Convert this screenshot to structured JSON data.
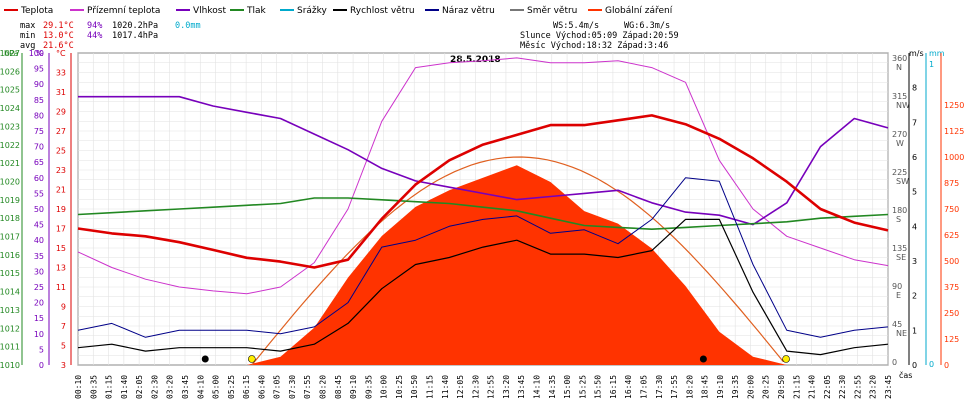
{
  "legend": [
    {
      "label": "Teplota",
      "color": "#dd0000"
    },
    {
      "label": "Přízemní teplota",
      "color": "#cc33cc"
    },
    {
      "label": "Vlhkost",
      "color": "#7700bb"
    },
    {
      "label": "Tlak",
      "color": "#228822"
    },
    {
      "label": "Srážky",
      "color": "#00aacc"
    },
    {
      "label": "Rychlost větru",
      "color": "#000000"
    },
    {
      "label": "Náraz větru",
      "color": "#000088"
    },
    {
      "label": "Směr větru",
      "color": "#777777"
    },
    {
      "label": "Globální záření",
      "color": "#ff3300"
    }
  ],
  "stats": {
    "max_label": "max",
    "max_temp": "29.1°C",
    "max_hum": "94%",
    "max_press": "1020.2hPa",
    "max_rain": "0.0mm",
    "min_label": "min",
    "min_temp": "13.0°C",
    "min_hum": "44%",
    "min_press": "1017.4hPa",
    "avg_label": "avg",
    "avg_temp": "21.6°C"
  },
  "info": {
    "ws": "WS:5.4m/s",
    "wg": "WG:6.3m/s",
    "sun": "Slunce Východ:05:09  Západ:20:59",
    "moon": "Měsíc  Východ:18:32  Západ:3:46"
  },
  "chart_data": {
    "type": "line",
    "title": "28.5.2018",
    "xlabel": "čas",
    "axes": {
      "hpa": {
        "unit": "hPa",
        "range": [
          1010,
          1027
        ],
        "ticks": [
          "1027",
          "1026",
          "1025",
          "1024",
          "1023",
          "1022",
          "1021",
          "1020",
          "1019",
          "1018",
          "1017",
          "1016",
          "1015",
          "1014",
          "1013",
          "1012",
          "1011",
          "1010"
        ]
      },
      "percent": {
        "unit": "%",
        "range": [
          0,
          100
        ],
        "ticks": [
          "100",
          "95",
          "90",
          "85",
          "80",
          "75",
          "70",
          "65",
          "60",
          "55",
          "50",
          "45",
          "40",
          "35",
          "30",
          "25",
          "20",
          "15",
          "10",
          "5",
          "0"
        ]
      },
      "celsius": {
        "unit": "°C",
        "range": [
          3,
          35
        ],
        "ticks": [
          "33",
          "31",
          "29",
          "27",
          "25",
          "23",
          "21",
          "19",
          "17",
          "15",
          "13",
          "11",
          "9",
          "7",
          "5",
          "3"
        ]
      },
      "direction": {
        "unit": "m/s",
        "ticks": [
          "360",
          "315",
          "270",
          "225",
          "180",
          "135",
          "90",
          "45",
          "0"
        ],
        "labels": [
          "N",
          "NW",
          "W",
          "SW",
          "S",
          "SE",
          "E",
          "NE",
          ""
        ]
      },
      "wind": {
        "ticks": [
          "8",
          "7",
          "6",
          "5",
          "4",
          "3",
          "2",
          "1",
          "0"
        ]
      },
      "rain": {
        "unit": "mm",
        "ticks": [
          "1",
          "0"
        ]
      },
      "radiation": {
        "ticks": [
          "1250",
          "1125",
          "1000",
          "875",
          "750",
          "625",
          "500",
          "375",
          "250",
          "125",
          "0"
        ]
      }
    },
    "x_ticks": [
      "00:10",
      "00:35",
      "01:15",
      "01:40",
      "02:05",
      "02:30",
      "03:20",
      "03:45",
      "04:10",
      "05:00",
      "05:25",
      "06:15",
      "06:40",
      "07:05",
      "07:30",
      "07:55",
      "08:20",
      "08:45",
      "09:10",
      "09:35",
      "10:00",
      "10:25",
      "10:50",
      "11:15",
      "11:40",
      "12:05",
      "12:30",
      "12:55",
      "13:20",
      "13:45",
      "14:10",
      "14:35",
      "15:00",
      "15:25",
      "15:50",
      "16:15",
      "16:40",
      "17:05",
      "17:30",
      "17:55",
      "18:20",
      "18:45",
      "19:10",
      "19:35",
      "20:00",
      "20:25",
      "20:50",
      "21:15",
      "21:40",
      "22:05",
      "22:30",
      "22:55",
      "23:20",
      "23:45"
    ],
    "hours": [
      0,
      1,
      2,
      3,
      4,
      5,
      6,
      7,
      8,
      9,
      10,
      11,
      12,
      13,
      14,
      15,
      16,
      17,
      18,
      19,
      20,
      21,
      22,
      23,
      24
    ],
    "series": [
      {
        "name": "Teplota",
        "values": [
          17,
          16.5,
          16.2,
          15.6,
          14.8,
          14,
          13.6,
          13,
          13.8,
          18,
          21.5,
          24,
          25.6,
          26.6,
          27.6,
          27.6,
          28.1,
          28.6,
          27.7,
          26.2,
          24.2,
          21.8,
          19,
          17.6,
          16.8
        ]
      },
      {
        "name": "Přízemní teplota",
        "values": [
          14.6,
          13,
          11.8,
          11,
          10.6,
          10.3,
          11,
          13.5,
          19,
          28,
          33.5,
          34,
          34.2,
          34.5,
          34,
          34,
          34.2,
          33.5,
          32,
          24,
          19,
          16.2,
          15,
          13.8,
          13.2
        ]
      },
      {
        "name": "Vlhkost",
        "values": [
          86,
          86,
          86,
          86,
          83,
          81,
          79,
          74,
          69,
          63,
          59,
          57,
          55,
          53,
          54,
          55,
          56,
          52,
          49,
          48,
          45,
          52,
          70,
          79,
          76
        ]
      },
      {
        "name": "Tlak",
        "values": [
          1018.2,
          1018.3,
          1018.4,
          1018.5,
          1018.6,
          1018.7,
          1018.8,
          1019.1,
          1019.1,
          1019.0,
          1018.9,
          1018.8,
          1018.6,
          1018.4,
          1018.0,
          1017.6,
          1017.5,
          1017.4,
          1017.5,
          1017.6,
          1017.7,
          1017.8,
          1018.0,
          1018.1,
          1018.2
        ]
      },
      {
        "name": "Rychlost větru",
        "values": [
          0.5,
          0.6,
          0.4,
          0.5,
          0.5,
          0.5,
          0.4,
          0.6,
          1.2,
          2.2,
          2.9,
          3.1,
          3.4,
          3.6,
          3.2,
          3.2,
          3.1,
          3.3,
          4.2,
          4.2,
          2.1,
          0.4,
          0.3,
          0.5,
          0.6
        ]
      },
      {
        "name": "Náraz větru",
        "values": [
          1,
          1.2,
          0.8,
          1,
          1,
          1,
          0.9,
          1.1,
          1.8,
          3.4,
          3.6,
          4,
          4.2,
          4.3,
          3.8,
          3.9,
          3.5,
          4.2,
          5.4,
          5.3,
          2.9,
          1,
          0.8,
          1,
          1.1
        ]
      },
      {
        "name": "Globální záření",
        "values": [
          0,
          0,
          0,
          0,
          0,
          0,
          40,
          180,
          420,
          620,
          760,
          840,
          900,
          960,
          880,
          740,
          680,
          560,
          380,
          160,
          40,
          0,
          0,
          0,
          0
        ]
      }
    ]
  }
}
